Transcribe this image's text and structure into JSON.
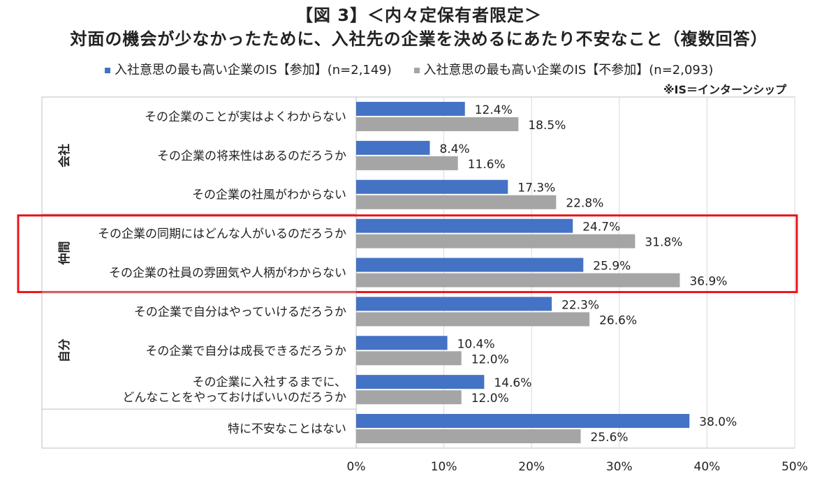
{
  "title": "【図 3】＜内々定保有者限定＞",
  "subtitle": "対面の機会が少なかったために、入社先の企業を決めるにあたり不安なこと（複数回答）",
  "note": "※IS＝インターンシップ",
  "colors": {
    "series1": "#4472C4",
    "series2": "#A5A5A5",
    "highlight": "#E8141B",
    "grid": "#D9D9D9",
    "axis": "#BFBFBF"
  },
  "chart_data": {
    "type": "bar",
    "orientation": "horizontal",
    "categories": [
      [
        "その企業のことが実はよくわからない"
      ],
      [
        "その企業の将来性はあるのだろうか"
      ],
      [
        "その企業の社風がわからない"
      ],
      [
        "その企業の同期にはどんな人がいるのだろうか"
      ],
      [
        "その企業の社員の雰囲気や人柄がわからない"
      ],
      [
        "その企業で自分はやっていけるだろうか"
      ],
      [
        "その企業で自分は成長できるだろうか"
      ],
      [
        "その企業に入社するまでに、",
        "どんなことをやっておけばいいのだろうか"
      ],
      [
        "特に不安なことはない"
      ]
    ],
    "groups": [
      {
        "label": "会社",
        "from": 0,
        "to": 2
      },
      {
        "label": "仲間",
        "from": 3,
        "to": 4,
        "highlighted": true
      },
      {
        "label": "自分",
        "from": 5,
        "to": 7
      },
      {
        "label": "",
        "from": 8,
        "to": 8
      }
    ],
    "series": [
      {
        "name": "入社意思の最も高い企業のIS【参加】(n=2,149)",
        "values": [
          12.4,
          8.4,
          17.3,
          24.7,
          25.9,
          22.3,
          10.4,
          14.6,
          38.0
        ]
      },
      {
        "name": "入社意思の最も高い企業のIS【不参加】(n=2,093)",
        "values": [
          18.5,
          11.6,
          22.8,
          31.8,
          36.9,
          26.6,
          12.0,
          12.0,
          25.6
        ]
      }
    ],
    "xlim": [
      0,
      50
    ],
    "xticks": [
      0,
      10,
      20,
      30,
      40,
      50
    ],
    "tick_suffix": "%",
    "value_suffix": "%",
    "grid": true,
    "legend_position": "top"
  }
}
